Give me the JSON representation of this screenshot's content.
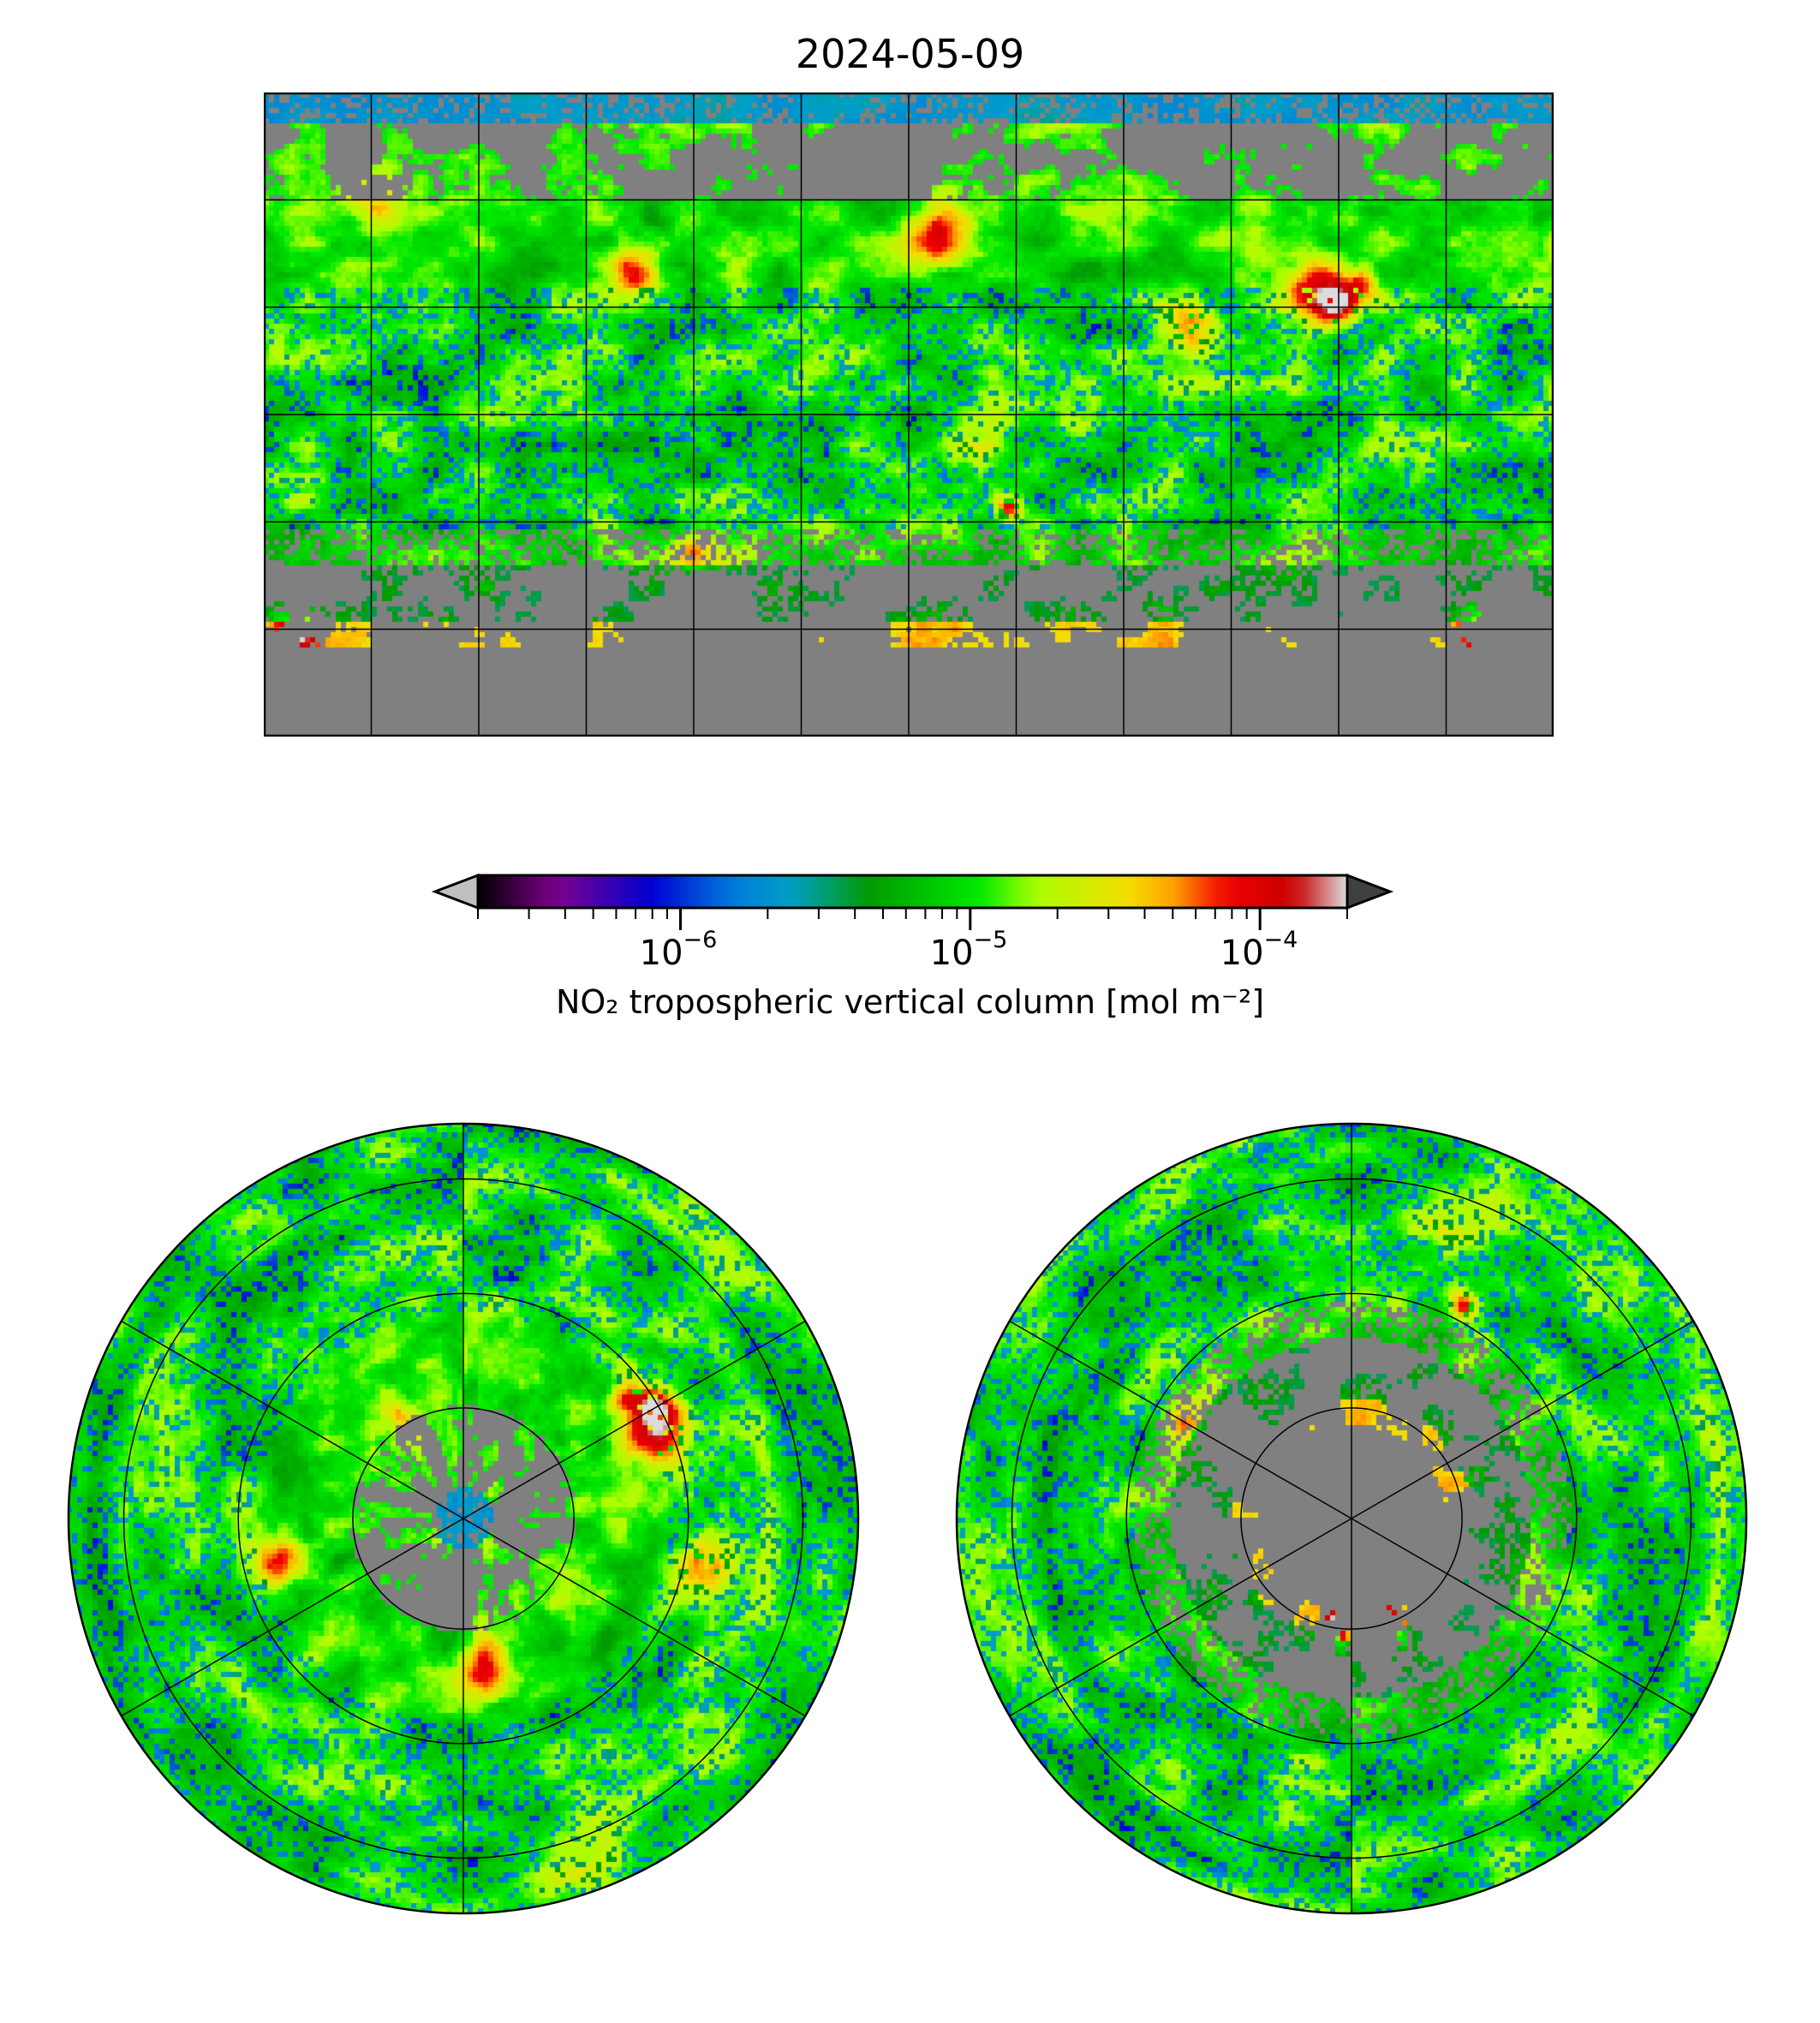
{
  "chart_data": {
    "type": "heatmap",
    "title": "2024-05-09",
    "panels": [
      {
        "name": "global",
        "projection": "equirectangular",
        "grid_spacing_deg": 30
      },
      {
        "name": "north-polar",
        "projection": "north-polar-stereographic",
        "grid": "on"
      },
      {
        "name": "south-polar",
        "projection": "south-polar-stereographic",
        "grid": "on"
      }
    ],
    "colorbar": {
      "label": "NO₂ tropospheric vertical column [mol m⁻²]",
      "scale": "log",
      "range": [
        2e-07,
        0.0002
      ],
      "extend": "both",
      "ticks": [
        {
          "value": 1e-06,
          "base": "10",
          "exp": "−6"
        },
        {
          "value": 1e-05,
          "base": "10",
          "exp": "−5"
        },
        {
          "value": 0.0001,
          "base": "10",
          "exp": "−4"
        }
      ],
      "under_color": "#c0c0c0",
      "over_color": "#404040",
      "nodata_color": "#808080"
    }
  }
}
